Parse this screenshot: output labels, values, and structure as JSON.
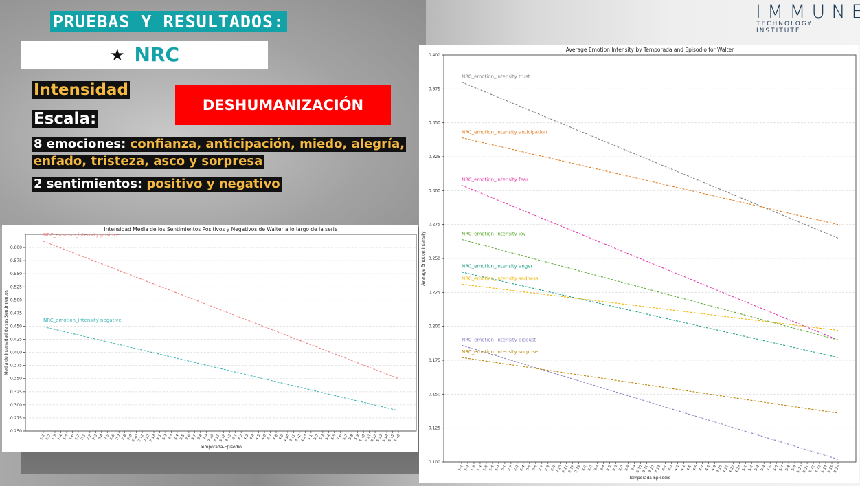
{
  "slide": {
    "title": "PRUEBAS Y RESULTADOS:",
    "star_icon": "★",
    "nrc_label": "NRC",
    "intensidad": "Intensidad",
    "escala": "Escala:",
    "emociones_label": "8 emociones:",
    "emociones_list_1": "confianza, anticipación, miedo, alegría,",
    "emociones_list_2": "enfado, tristeza, asco y sorpresa",
    "sentimientos_label": "2 sentimientos:",
    "sentimientos_list": "positivo y negativo",
    "box_label": "DESHUMANIZACIÓN",
    "logo_main": "IMMUNE",
    "logo_sub": "TECHNOLOGY INSTITUTE",
    "colors": {
      "teal": "#12a2a8",
      "yellow": "#f4b942",
      "red": "#ff0000"
    }
  },
  "episodes": [
    "1-1",
    "1-2",
    "1-3",
    "1-4",
    "1-5",
    "1-6",
    "1-7",
    "2-1",
    "2-2",
    "2-3",
    "2-4",
    "2-5",
    "2-6",
    "2-7",
    "2-8",
    "2-9",
    "2-10",
    "2-11",
    "2-12",
    "2-13",
    "3-1",
    "3-2",
    "3-3",
    "3-4",
    "3-5",
    "3-6",
    "3-7",
    "3-8",
    "3-9",
    "3-10",
    "3-11",
    "3-12",
    "3-13",
    "4-1",
    "4-2",
    "4-3",
    "4-4",
    "4-5",
    "4-6",
    "4-7",
    "4-8",
    "4-9",
    "4-10",
    "4-11",
    "4-12",
    "4-13",
    "5-1",
    "5-2",
    "5-3",
    "5-4",
    "5-5",
    "5-6",
    "5-7",
    "5-8",
    "5-9",
    "5-10",
    "5-11",
    "5-12",
    "5-13",
    "5-14",
    "5-15",
    "5-16"
  ],
  "chart_data": [
    {
      "type": "line",
      "title": "Intensidad Media de los Sentimientos Positivos y Negativos de Walter a lo largo de la serie",
      "xlabel": "Temporada-Episodio",
      "ylabel": "Media de intensidad de sus Sentimientos",
      "ylim": [
        0.25,
        0.625
      ],
      "yticks": [
        "0.250",
        "0.275",
        "0.300",
        "0.325",
        "0.350",
        "0.375",
        "0.400",
        "0.425",
        "0.450",
        "0.475",
        "0.500",
        "0.525",
        "0.550",
        "0.575",
        "0.600"
      ],
      "grid": "horizontal",
      "series": [
        {
          "name": "NRC_emotion_intensity positive",
          "start": 0.612,
          "end": 0.35,
          "color": "#f08080"
        },
        {
          "name": "NRC_emotion_intensity negative",
          "start": 0.449,
          "end": 0.289,
          "color": "#3fb4b4"
        }
      ]
    },
    {
      "type": "line",
      "title": "Average Emotion Intensity by Temporada and Episodio for Walter",
      "xlabel": "Temporada-Episodio",
      "ylabel": "Average Emotion Intensity",
      "ylim": [
        0.1,
        0.4
      ],
      "yticks": [
        "0.100",
        "0.125",
        "0.150",
        "0.175",
        "0.200",
        "0.225",
        "0.250",
        "0.275",
        "0.300",
        "0.325",
        "0.350",
        "0.375",
        "0.400"
      ],
      "grid": "horizontal",
      "series": [
        {
          "name": "NRC_emotion_intensity trust",
          "start": 0.38,
          "end": 0.265,
          "color": "#7f7f7f"
        },
        {
          "name": "NRC_emotion_intensity anticipation",
          "start": 0.339,
          "end": 0.275,
          "color": "#e07b1f"
        },
        {
          "name": "NRC_emotion_intensity fear",
          "start": 0.304,
          "end": 0.19,
          "color": "#e535a7"
        },
        {
          "name": "NRC_emotion_intensity joy",
          "start": 0.264,
          "end": 0.19,
          "color": "#5ca832"
        },
        {
          "name": "NRC_emotion_intensity anger",
          "start": 0.24,
          "end": 0.177,
          "color": "#1f9e89"
        },
        {
          "name": "NRC_emotion_intensity sadness",
          "start": 0.231,
          "end": 0.197,
          "color": "#f0b400"
        },
        {
          "name": "NRC_emotion_intensity disgust",
          "start": 0.186,
          "end": 0.102,
          "color": "#8a7fc2"
        },
        {
          "name": "NRC_emotion_intensity surprise",
          "start": 0.177,
          "end": 0.136,
          "color": "#b8860b"
        }
      ]
    }
  ]
}
